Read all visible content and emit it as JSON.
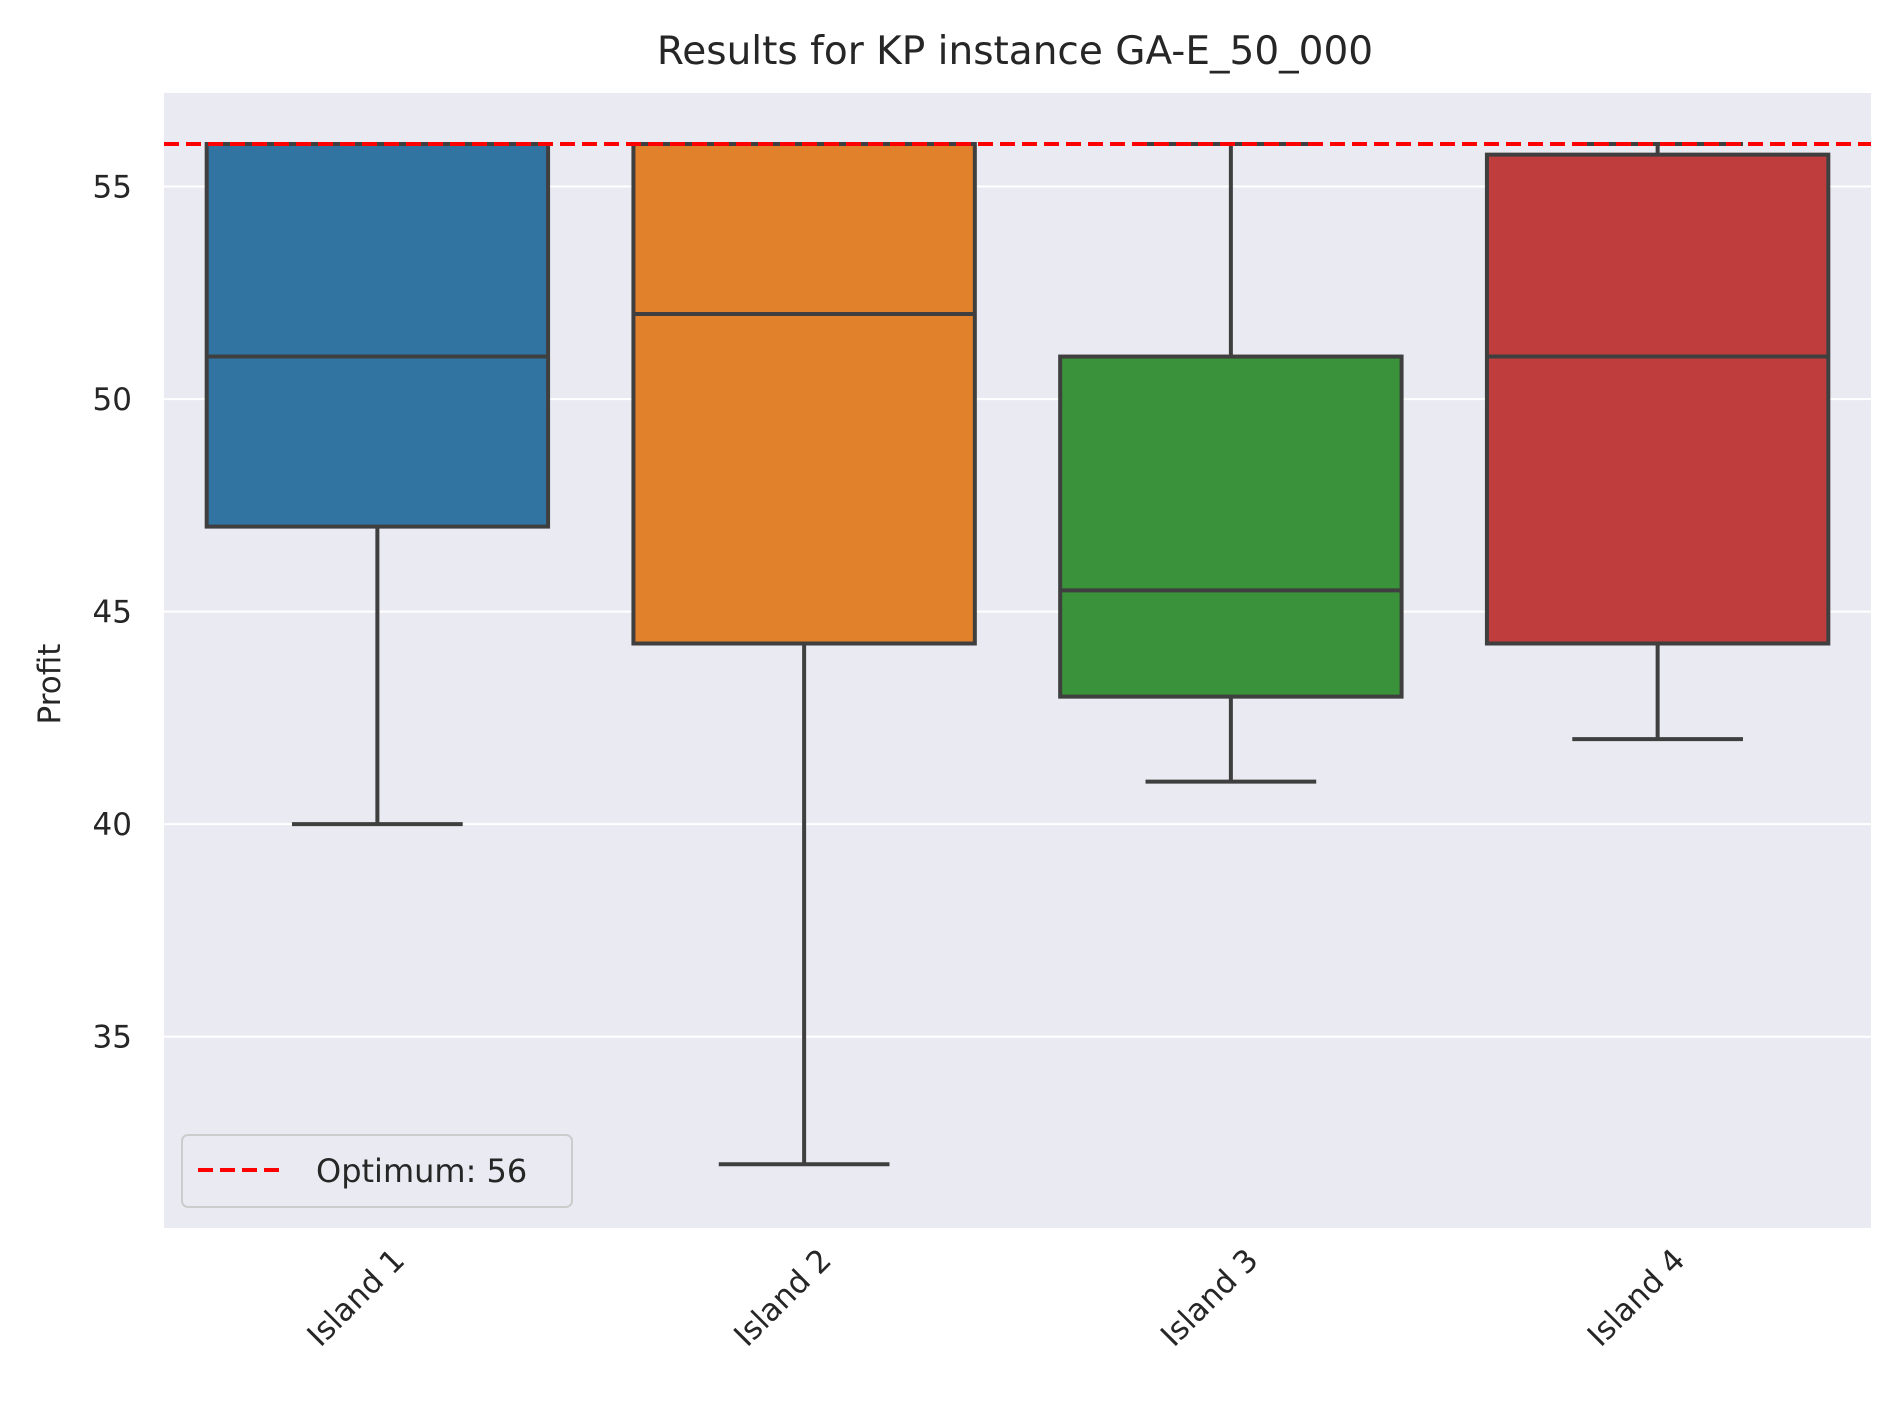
{
  "chart_data": {
    "type": "box",
    "title": "Results for KP instance GA-E_50_000",
    "ylabel": "Profit",
    "xlabel": "",
    "ylim": [
      30.5,
      57.2
    ],
    "yticks": [
      35,
      40,
      45,
      50,
      55
    ],
    "grid": true,
    "legend_position": "lower-left",
    "categories": [
      "Island 1",
      "Island 2",
      "Island 3",
      "Island 4"
    ],
    "boxes": [
      {
        "category": "Island 1",
        "whisker_low": 40,
        "q1": 47,
        "median": 51,
        "q3": 56,
        "whisker_high": 56,
        "color": "#3274a1"
      },
      {
        "category": "Island 2",
        "whisker_low": 32,
        "q1": 44.25,
        "median": 52,
        "q3": 56,
        "whisker_high": 56,
        "color": "#e1812c"
      },
      {
        "category": "Island 3",
        "whisker_low": 41,
        "q1": 43,
        "median": 45.5,
        "q3": 51,
        "whisker_high": 56,
        "color": "#3a923a"
      },
      {
        "category": "Island 4",
        "whisker_low": 42,
        "q1": 44.25,
        "median": 51,
        "q3": 55.75,
        "whisker_high": 56,
        "color": "#c03d3e"
      }
    ],
    "reference_line": {
      "value": 56,
      "label": "Optimum: 56",
      "color": "#ff0000",
      "style": "dashed"
    }
  }
}
